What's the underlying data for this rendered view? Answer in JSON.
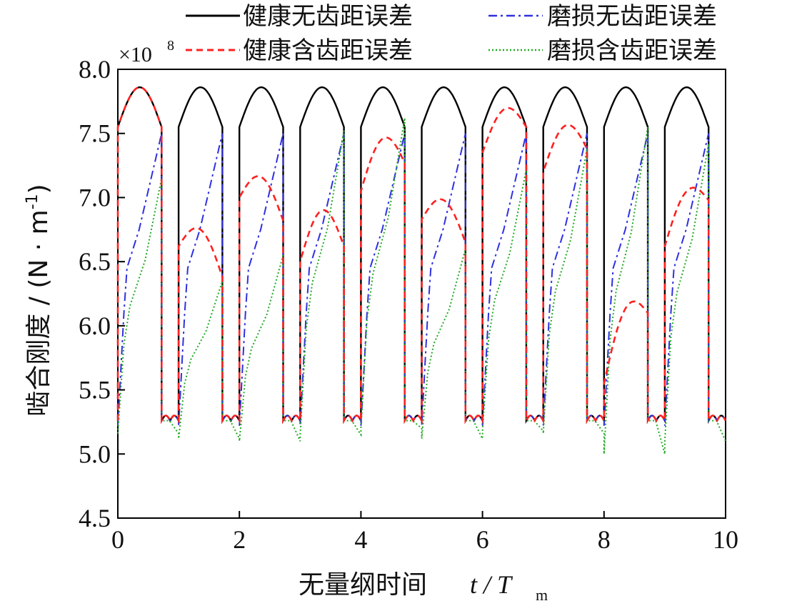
{
  "chart_data": {
    "type": "line",
    "title": "",
    "xlabel": "无量纲时间",
    "xlabel_var": "t / T",
    "xlabel_sub": "m",
    "ylabel": "啮合刚度 / (N · m",
    "ylabel_sup": "-1",
    "ylabel_close": ")",
    "y_multiplier": "×10",
    "y_multiplier_exp": "8",
    "xlim": [
      0,
      10
    ],
    "ylim": [
      4.5,
      8.0
    ],
    "x_ticks": [
      0,
      2,
      4,
      6,
      8,
      10
    ],
    "x_tick_labels": [
      "0",
      "2",
      "4",
      "6",
      "8",
      "10"
    ],
    "y_ticks": [
      4.5,
      5.0,
      5.5,
      6.0,
      6.5,
      7.0,
      7.5,
      8.0
    ],
    "y_tick_labels": [
      "4.5",
      "5.0",
      "5.5",
      "6.0",
      "6.5",
      "7.0",
      "7.5",
      "8.0"
    ],
    "grid": false,
    "legend_position": "top",
    "period": 1,
    "series": [
      {
        "name": "健康无齿距误差",
        "color": "#000000",
        "dash": "solid",
        "segments": [
          {
            "start": 0,
            "low": 5.26,
            "high_start": 7.55,
            "peak": 7.86,
            "high_end": 7.55,
            "high_duration": 0.72,
            "low_dip": 5.26
          }
        ],
        "periodic": true,
        "high_level_start": 7.55,
        "high_peak": 7.86,
        "low_level": 5.26,
        "low_hump": 5.3,
        "double_contact_fraction": 0.72
      },
      {
        "name": "健康含齿距误差",
        "color": "#ff2020",
        "dash": "dashed",
        "periodic": false,
        "high_peaks": [
          7.86,
          6.75,
          7.16,
          6.9,
          7.46,
          6.98,
          7.69,
          7.56,
          6.14,
          7.05
        ],
        "high_starts": [
          7.55,
          6.62,
          7.0,
          6.5,
          7.05,
          6.83,
          7.35,
          7.2,
          5.55,
          6.62
        ],
        "high_ends": [
          7.55,
          6.38,
          6.82,
          6.62,
          7.27,
          6.65,
          7.55,
          7.38,
          6.1,
          6.98
        ]
      },
      {
        "name": "磨损无齿距误差",
        "color": "#3030e0",
        "dash": "dashdot",
        "periodic": true,
        "ramp_start": 5.22,
        "ramp_knee": 6.45,
        "ramp_end": 7.5,
        "low_level": 5.26
      },
      {
        "name": "磨损含齿距误差",
        "color": "#22aa22",
        "dash": "dotted",
        "periodic": false,
        "ramp_starts": [
          5.16,
          5.12,
          5.1,
          5.15,
          5.2,
          5.12,
          5.18,
          5.16,
          5.0,
          5.1
        ],
        "ramp_ends": [
          7.15,
          6.35,
          6.55,
          7.52,
          7.62,
          6.6,
          7.22,
          7.38,
          7.55,
          7.42
        ]
      }
    ]
  }
}
